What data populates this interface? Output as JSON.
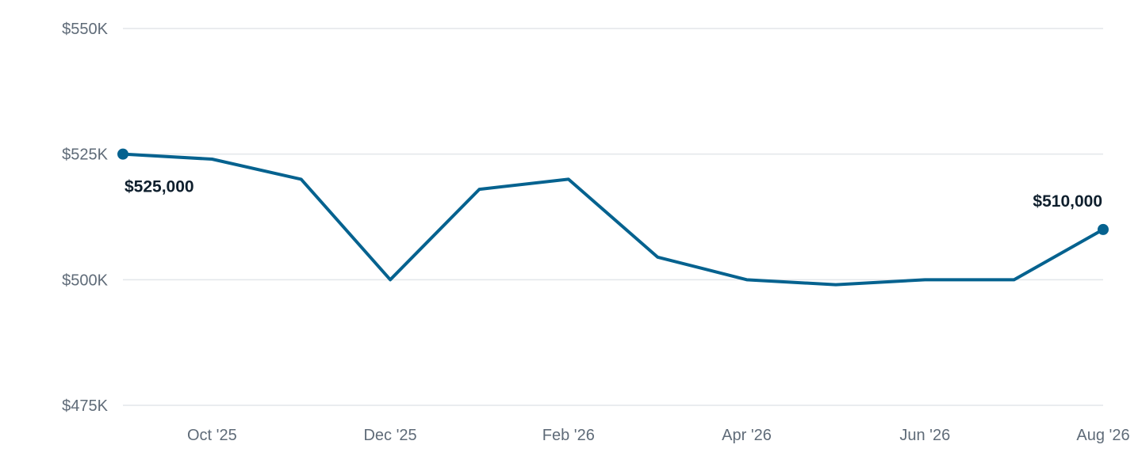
{
  "chart_data": {
    "type": "line",
    "series": [
      {
        "x": [
          "Sep '25",
          "Oct '25",
          "Nov '25",
          "Dec '25",
          "Jan '26",
          "Feb '26",
          "Mar '26",
          "Apr '26",
          "May '26",
          "Jun '26",
          "Jul '26",
          "Aug '26"
        ],
        "values": [
          525000,
          524000,
          520000,
          500000,
          518000,
          520000,
          504500,
          500000,
          499000,
          500000,
          500000,
          510000
        ]
      }
    ],
    "x_tick_labels": [
      "Oct '25",
      "Dec '25",
      "Feb '26",
      "Apr '26",
      "Jun '26",
      "Aug '26"
    ],
    "y_tick_labels": [
      "$550K",
      "$525K",
      "$500K",
      "$475K"
    ],
    "y_ticks": [
      550000,
      525000,
      500000,
      475000
    ],
    "ylim": [
      475000,
      550000
    ],
    "grid": true,
    "endpoint_labels": {
      "start": "$525,000",
      "end": "$510,000"
    },
    "colors": {
      "line": "#05628f",
      "grid": "#e3e6ea",
      "tick_text": "#5f6b78",
      "label_text": "#0f1f2d"
    }
  }
}
